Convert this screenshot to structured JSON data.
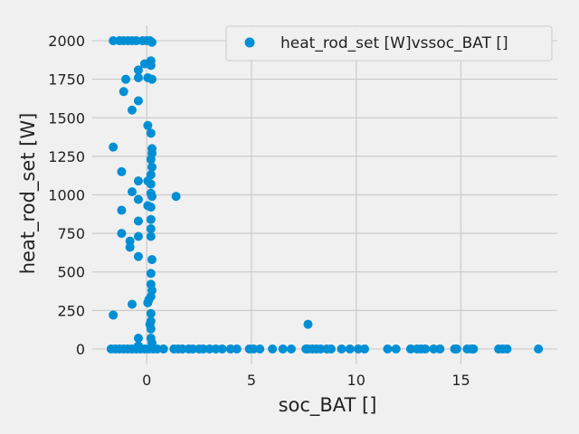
{
  "chart_data": {
    "type": "scatter",
    "xlabel": "soc_BAT []",
    "ylabel": "heat_rod_set [W]",
    "xlim": [
      -2.6,
      19.6
    ],
    "ylim": [
      -100,
      2100
    ],
    "xticks": [
      0,
      5,
      10,
      15
    ],
    "yticks": [
      0,
      250,
      500,
      750,
      1000,
      1250,
      1500,
      1750,
      2000
    ],
    "grid": true,
    "legend_position": "top-right",
    "series": [
      {
        "name": "heat_rod_set [W]vssoc_BAT []",
        "color": "#008fd5",
        "points": [
          [
            -1.6,
            2000
          ],
          [
            -1.3,
            2000
          ],
          [
            -1.1,
            2000
          ],
          [
            -0.9,
            2000
          ],
          [
            -0.7,
            2000
          ],
          [
            -0.5,
            2000
          ],
          [
            -0.2,
            2000
          ],
          [
            0.0,
            2000
          ],
          [
            0.15,
            2000
          ],
          [
            0.25,
            1990
          ],
          [
            -0.1,
            1850
          ],
          [
            0.2,
            1840
          ],
          [
            0.2,
            1870
          ],
          [
            -0.4,
            1810
          ],
          [
            -0.4,
            1760
          ],
          [
            0.05,
            1760
          ],
          [
            0.25,
            1750
          ],
          [
            -1.0,
            1750
          ],
          [
            -1.1,
            1670
          ],
          [
            -0.4,
            1610
          ],
          [
            -0.7,
            1550
          ],
          [
            0.05,
            1450
          ],
          [
            0.2,
            1400
          ],
          [
            0.25,
            1300
          ],
          [
            -1.6,
            1310
          ],
          [
            0.25,
            1270
          ],
          [
            0.2,
            1230
          ],
          [
            0.25,
            1180
          ],
          [
            -1.2,
            1150
          ],
          [
            0.2,
            1130
          ],
          [
            -0.4,
            1090
          ],
          [
            0.05,
            1090
          ],
          [
            0.2,
            1070
          ],
          [
            -0.7,
            1020
          ],
          [
            0.2,
            1010
          ],
          [
            0.25,
            990
          ],
          [
            1.4,
            990
          ],
          [
            -0.4,
            970
          ],
          [
            0.05,
            930
          ],
          [
            0.2,
            920
          ],
          [
            -1.2,
            900
          ],
          [
            0.2,
            840
          ],
          [
            -0.4,
            830
          ],
          [
            0.2,
            780
          ],
          [
            -1.2,
            750
          ],
          [
            -0.4,
            730
          ],
          [
            0.2,
            730
          ],
          [
            -0.8,
            700
          ],
          [
            -0.8,
            660
          ],
          [
            -0.4,
            600
          ],
          [
            0.25,
            580
          ],
          [
            0.2,
            490
          ],
          [
            0.2,
            420
          ],
          [
            0.25,
            380
          ],
          [
            0.2,
            340
          ],
          [
            0.1,
            320
          ],
          [
            0.05,
            300
          ],
          [
            -0.7,
            290
          ],
          [
            0.2,
            230
          ],
          [
            -1.6,
            220
          ],
          [
            0.2,
            180
          ],
          [
            0.15,
            160
          ],
          [
            7.7,
            160
          ],
          [
            0.2,
            130
          ],
          [
            0.2,
            70
          ],
          [
            -0.4,
            70
          ],
          [
            0.25,
            40
          ],
          [
            -0.4,
            20
          ],
          [
            -1.7,
            0
          ],
          [
            -1.5,
            0
          ],
          [
            -1.3,
            0
          ],
          [
            -1.1,
            0
          ],
          [
            -0.9,
            0
          ],
          [
            -0.7,
            0
          ],
          [
            -0.5,
            0
          ],
          [
            -0.3,
            0
          ],
          [
            -0.1,
            0
          ],
          [
            0.1,
            0
          ],
          [
            0.3,
            0
          ],
          [
            0.5,
            0
          ],
          [
            0.8,
            0
          ],
          [
            1.3,
            0
          ],
          [
            1.5,
            0
          ],
          [
            1.7,
            0
          ],
          [
            2.0,
            0
          ],
          [
            2.2,
            0
          ],
          [
            2.5,
            0
          ],
          [
            2.7,
            0
          ],
          [
            3.0,
            0
          ],
          [
            3.3,
            0
          ],
          [
            3.6,
            0
          ],
          [
            4.0,
            0
          ],
          [
            4.3,
            0
          ],
          [
            4.9,
            0
          ],
          [
            5.1,
            0
          ],
          [
            5.4,
            0
          ],
          [
            6.0,
            0
          ],
          [
            6.5,
            0
          ],
          [
            6.9,
            0
          ],
          [
            7.6,
            0
          ],
          [
            7.7,
            0
          ],
          [
            7.9,
            0
          ],
          [
            8.1,
            0
          ],
          [
            8.3,
            0
          ],
          [
            8.6,
            0
          ],
          [
            8.8,
            0
          ],
          [
            9.3,
            0
          ],
          [
            9.7,
            0
          ],
          [
            10.1,
            0
          ],
          [
            10.4,
            0
          ],
          [
            11.5,
            0
          ],
          [
            11.9,
            0
          ],
          [
            12.6,
            0
          ],
          [
            12.9,
            0
          ],
          [
            13.1,
            0
          ],
          [
            13.3,
            0
          ],
          [
            13.7,
            0
          ],
          [
            14.0,
            0
          ],
          [
            14.7,
            0
          ],
          [
            14.8,
            0
          ],
          [
            15.3,
            0
          ],
          [
            15.5,
            0
          ],
          [
            15.6,
            0
          ],
          [
            16.8,
            0
          ],
          [
            17.0,
            0
          ],
          [
            17.2,
            0
          ],
          [
            18.7,
            0
          ]
        ]
      }
    ]
  }
}
